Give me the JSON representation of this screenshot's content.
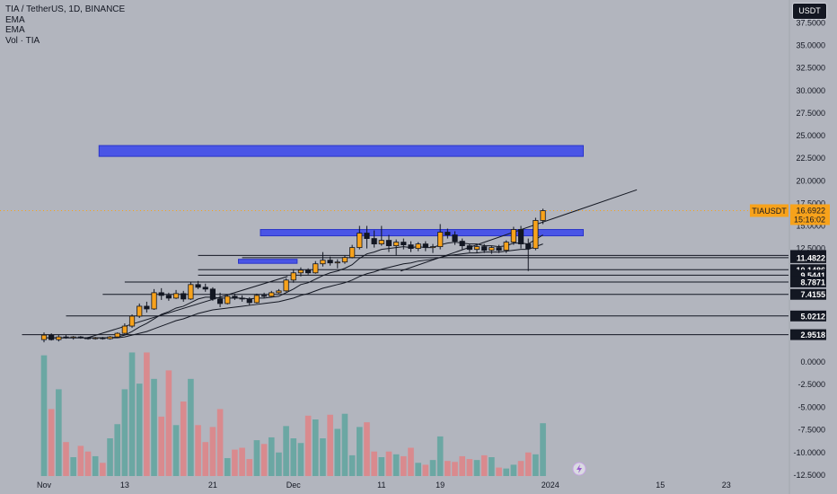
{
  "window": {
    "symbol_title": "TIA / TetherUS, 1D, BINANCE",
    "legend_items": [
      "EMA",
      "EMA",
      "Vol · TIA"
    ],
    "currency_button": "USDT",
    "logo": "tradingview-logo"
  },
  "colors": {
    "background": "#b2b5be",
    "up_candle": "#f7a21b",
    "down_candle": "#131722",
    "vol_up": "#6ba7a3",
    "vol_down": "#d98a8e",
    "zone": "#4a55e6",
    "price_tag": "#f7a21b"
  },
  "chart_data": [
    {
      "type": "candlestick",
      "title": "TIA / TetherUS, 1D, BINANCE",
      "x_ticks": [
        "Nov",
        "13",
        "21",
        "Dec",
        "11",
        "19",
        "2024",
        "15",
        "23"
      ],
      "y_ticks": [
        "37.5000",
        "35.0000",
        "32.5000",
        "30.0000",
        "27.5000",
        "25.0000",
        "22.5000",
        "20.0000",
        "17.5000",
        "15.0000",
        "12.5000"
      ],
      "ylim": [
        2.0,
        39.0
      ],
      "candles": [
        {
          "o": 2.4,
          "h": 3.2,
          "l": 2.1,
          "c": 2.9
        },
        {
          "o": 2.9,
          "h": 3.1,
          "l": 2.3,
          "c": 2.4
        },
        {
          "o": 2.4,
          "h": 2.9,
          "l": 2.2,
          "c": 2.7
        },
        {
          "o": 2.7,
          "h": 2.9,
          "l": 2.5,
          "c": 2.6
        },
        {
          "o": 2.6,
          "h": 2.8,
          "l": 2.4,
          "c": 2.7
        },
        {
          "o": 2.7,
          "h": 2.8,
          "l": 2.5,
          "c": 2.6
        },
        {
          "o": 2.6,
          "h": 2.7,
          "l": 2.4,
          "c": 2.5
        },
        {
          "o": 2.5,
          "h": 2.7,
          "l": 2.4,
          "c": 2.6
        },
        {
          "o": 2.6,
          "h": 2.7,
          "l": 2.4,
          "c": 2.5
        },
        {
          "o": 2.5,
          "h": 2.8,
          "l": 2.4,
          "c": 2.7
        },
        {
          "o": 2.7,
          "h": 3.2,
          "l": 2.6,
          "c": 3.1
        },
        {
          "o": 3.1,
          "h": 4.2,
          "l": 3.0,
          "c": 3.9
        },
        {
          "o": 3.9,
          "h": 5.2,
          "l": 3.7,
          "c": 5.0
        },
        {
          "o": 5.0,
          "h": 6.4,
          "l": 4.8,
          "c": 6.1
        },
        {
          "o": 6.1,
          "h": 6.6,
          "l": 5.4,
          "c": 5.8
        },
        {
          "o": 5.8,
          "h": 8.0,
          "l": 5.7,
          "c": 7.6
        },
        {
          "o": 7.6,
          "h": 8.1,
          "l": 6.8,
          "c": 7.3
        },
        {
          "o": 7.3,
          "h": 7.6,
          "l": 6.7,
          "c": 7.0
        },
        {
          "o": 7.0,
          "h": 7.9,
          "l": 6.9,
          "c": 7.5
        },
        {
          "o": 7.5,
          "h": 7.8,
          "l": 6.6,
          "c": 6.9
        },
        {
          "o": 6.9,
          "h": 8.8,
          "l": 6.8,
          "c": 8.5
        },
        {
          "o": 8.5,
          "h": 8.9,
          "l": 8.0,
          "c": 8.2
        },
        {
          "o": 8.2,
          "h": 8.6,
          "l": 7.7,
          "c": 8.0
        },
        {
          "o": 8.0,
          "h": 8.2,
          "l": 6.7,
          "c": 6.9
        },
        {
          "o": 6.9,
          "h": 7.6,
          "l": 6.0,
          "c": 6.4
        },
        {
          "o": 6.4,
          "h": 7.4,
          "l": 6.3,
          "c": 7.2
        },
        {
          "o": 7.2,
          "h": 7.5,
          "l": 6.8,
          "c": 7.0
        },
        {
          "o": 7.0,
          "h": 7.3,
          "l": 6.6,
          "c": 6.9
        },
        {
          "o": 6.9,
          "h": 7.1,
          "l": 6.2,
          "c": 6.5
        },
        {
          "o": 6.5,
          "h": 7.5,
          "l": 6.4,
          "c": 7.3
        },
        {
          "o": 7.3,
          "h": 7.6,
          "l": 7.0,
          "c": 7.2
        },
        {
          "o": 7.2,
          "h": 7.8,
          "l": 7.1,
          "c": 7.6
        },
        {
          "o": 7.6,
          "h": 8.0,
          "l": 7.5,
          "c": 7.8
        },
        {
          "o": 7.8,
          "h": 9.2,
          "l": 7.7,
          "c": 9.0
        },
        {
          "o": 9.0,
          "h": 10.2,
          "l": 8.7,
          "c": 9.8
        },
        {
          "o": 9.8,
          "h": 10.4,
          "l": 9.4,
          "c": 10.1
        },
        {
          "o": 10.1,
          "h": 10.3,
          "l": 9.6,
          "c": 9.8
        },
        {
          "o": 9.8,
          "h": 11.1,
          "l": 9.7,
          "c": 10.8
        },
        {
          "o": 10.8,
          "h": 12.1,
          "l": 10.5,
          "c": 11.2
        },
        {
          "o": 11.2,
          "h": 11.6,
          "l": 10.6,
          "c": 10.9
        },
        {
          "o": 10.9,
          "h": 11.3,
          "l": 10.3,
          "c": 11.0
        },
        {
          "o": 11.0,
          "h": 11.7,
          "l": 10.8,
          "c": 11.5
        },
        {
          "o": 11.5,
          "h": 12.9,
          "l": 11.4,
          "c": 12.6
        },
        {
          "o": 12.6,
          "h": 15.0,
          "l": 12.4,
          "c": 14.2
        },
        {
          "o": 14.2,
          "h": 15.0,
          "l": 12.5,
          "c": 13.6
        },
        {
          "o": 13.6,
          "h": 14.5,
          "l": 12.6,
          "c": 13.0
        },
        {
          "o": 13.0,
          "h": 15.0,
          "l": 12.8,
          "c": 13.4
        },
        {
          "o": 13.4,
          "h": 14.0,
          "l": 12.1,
          "c": 12.8
        },
        {
          "o": 12.8,
          "h": 13.5,
          "l": 11.7,
          "c": 13.2
        },
        {
          "o": 13.2,
          "h": 13.6,
          "l": 12.4,
          "c": 12.9
        },
        {
          "o": 12.9,
          "h": 13.3,
          "l": 12.1,
          "c": 12.5
        },
        {
          "o": 12.5,
          "h": 13.2,
          "l": 12.2,
          "c": 13.0
        },
        {
          "o": 13.0,
          "h": 13.3,
          "l": 12.2,
          "c": 12.6
        },
        {
          "o": 12.6,
          "h": 13.0,
          "l": 12.0,
          "c": 12.7
        },
        {
          "o": 12.7,
          "h": 15.2,
          "l": 12.4,
          "c": 14.3
        },
        {
          "o": 14.3,
          "h": 14.7,
          "l": 13.6,
          "c": 14.0
        },
        {
          "o": 14.0,
          "h": 14.4,
          "l": 12.9,
          "c": 13.3
        },
        {
          "o": 13.3,
          "h": 13.6,
          "l": 12.4,
          "c": 12.8
        },
        {
          "o": 12.8,
          "h": 13.0,
          "l": 12.1,
          "c": 12.4
        },
        {
          "o": 12.4,
          "h": 12.9,
          "l": 12.0,
          "c": 12.7
        },
        {
          "o": 12.7,
          "h": 13.0,
          "l": 12.0,
          "c": 12.3
        },
        {
          "o": 12.3,
          "h": 12.8,
          "l": 11.9,
          "c": 12.6
        },
        {
          "o": 12.6,
          "h": 12.9,
          "l": 12.0,
          "c": 12.3
        },
        {
          "o": 12.3,
          "h": 13.4,
          "l": 12.0,
          "c": 13.2
        },
        {
          "o": 13.2,
          "h": 14.9,
          "l": 12.9,
          "c": 14.6
        },
        {
          "o": 14.6,
          "h": 15.0,
          "l": 12.5,
          "c": 13.0
        },
        {
          "o": 13.0,
          "h": 13.6,
          "l": 10.0,
          "c": 12.5
        },
        {
          "o": 12.5,
          "h": 15.9,
          "l": 12.3,
          "c": 15.6
        },
        {
          "o": 15.6,
          "h": 16.9,
          "l": 15.2,
          "c": 16.69
        }
      ],
      "ema_fast": [
        2.6,
        2.6,
        2.6,
        2.6,
        2.6,
        2.6,
        2.6,
        2.6,
        2.6,
        2.6,
        2.7,
        2.9,
        3.3,
        3.8,
        4.2,
        4.7,
        5.2,
        5.5,
        5.9,
        6.1,
        6.5,
        6.9,
        7.1,
        7.1,
        7.0,
        7.0,
        7.0,
        7.0,
        6.9,
        7.0,
        7.0,
        7.1,
        7.2,
        7.6,
        8.0,
        8.5,
        8.7,
        9.1,
        9.5,
        9.8,
        10.0,
        10.3,
        10.7,
        11.4,
        11.9,
        12.1,
        12.4,
        12.5,
        12.6,
        12.7,
        12.6,
        12.7,
        12.6,
        12.6,
        12.9,
        13.1,
        13.2,
        13.1,
        13.0,
        13.0,
        12.8,
        12.8,
        12.7,
        12.8,
        13.1,
        13.1,
        13.0,
        13.5,
        14.0
      ],
      "ema_slow": [
        2.6,
        2.6,
        2.6,
        2.6,
        2.6,
        2.6,
        2.6,
        2.6,
        2.6,
        2.6,
        2.6,
        2.7,
        2.9,
        3.1,
        3.3,
        3.6,
        3.9,
        4.2,
        4.5,
        4.7,
        5.0,
        5.3,
        5.5,
        5.7,
        5.8,
        5.9,
        6.0,
        6.1,
        6.2,
        6.3,
        6.4,
        6.5,
        6.6,
        6.8,
        7.0,
        7.3,
        7.5,
        7.8,
        8.1,
        8.3,
        8.5,
        8.7,
        9.0,
        9.4,
        9.7,
        9.9,
        10.2,
        10.4,
        10.6,
        10.8,
        10.9,
        11.1,
        11.2,
        11.3,
        11.5,
        11.7,
        11.8,
        11.9,
        12.0,
        12.0,
        12.1,
        12.1,
        12.1,
        12.2,
        12.3,
        12.4,
        12.4,
        12.7,
        13.0
      ],
      "volume": [
        12.8,
        7.1,
        9.2,
        3.6,
        2.0,
        3.2,
        2.6,
        2.1,
        1.4,
        4.0,
        5.5,
        9.2,
        13.1,
        9.8,
        13.1,
        10.3,
        6.3,
        11.2,
        5.4,
        7.9,
        10.3,
        5.4,
        3.6,
        5.2,
        7.1,
        1.9,
        2.8,
        3.0,
        1.8,
        3.8,
        3.4,
        4.1,
        2.5,
        5.3,
        4.0,
        3.5,
        6.4,
        6.0,
        4.0,
        6.5,
        5.0,
        6.6,
        2.2,
        5.2,
        5.7,
        2.6,
        2.0,
        2.6,
        2.3,
        2.1,
        3.0,
        1.4,
        1.2,
        1.7,
        4.2,
        1.6,
        1.5,
        2.1,
        1.8,
        1.7,
        2.2,
        2.0,
        0.9,
        0.8,
        1.2,
        1.6,
        2.5,
        2.3,
        5.6
      ],
      "horizontal_levels": [
        {
          "label": "11.7233",
          "value": 11.7233,
          "from_candle": 21
        },
        {
          "label": "11.4822",
          "value": 11.4822,
          "from_candle": 27
        },
        {
          "label": "10.1486",
          "value": 10.1486,
          "from_candle": 21
        },
        {
          "label": "9.5441",
          "value": 9.5441,
          "from_candle": 21
        },
        {
          "label": "8.7871",
          "value": 8.7871,
          "from_candle": 11
        },
        {
          "label": "7.4155",
          "value": 7.4155,
          "from_candle": 8
        },
        {
          "label": "5.0212",
          "value": 5.0212,
          "from_candle": 3
        },
        {
          "label": "2.9518",
          "value": 2.9518,
          "from_candle": -3
        }
      ],
      "zones": [
        {
          "from_candle": 8,
          "to_candle": 73,
          "low": 22.7,
          "high": 23.9
        },
        {
          "from_candle": 30,
          "to_candle": 73,
          "low": 13.9,
          "high": 14.6
        },
        {
          "from_candle": 27,
          "to_candle": 34,
          "low": 10.85,
          "high": 11.3
        }
      ],
      "trend_lines": [
        {
          "from": [
            5.5,
            2.5
          ],
          "to": [
            33.2,
            9.4
          ]
        },
        {
          "from": [
            48.6,
            10.0
          ],
          "to": [
            80.8,
            19.0
          ]
        }
      ],
      "current_price": {
        "symbol": "TIAUSDT",
        "value": "16.6922",
        "price": 16.6922,
        "countdown": "15:16:02"
      },
      "volume_axis": {
        "ticks": [
          "0.0000",
          "-2.5000",
          "-5.0000",
          "-7.5000",
          "-10.0000",
          "-12.5000"
        ]
      }
    }
  ]
}
